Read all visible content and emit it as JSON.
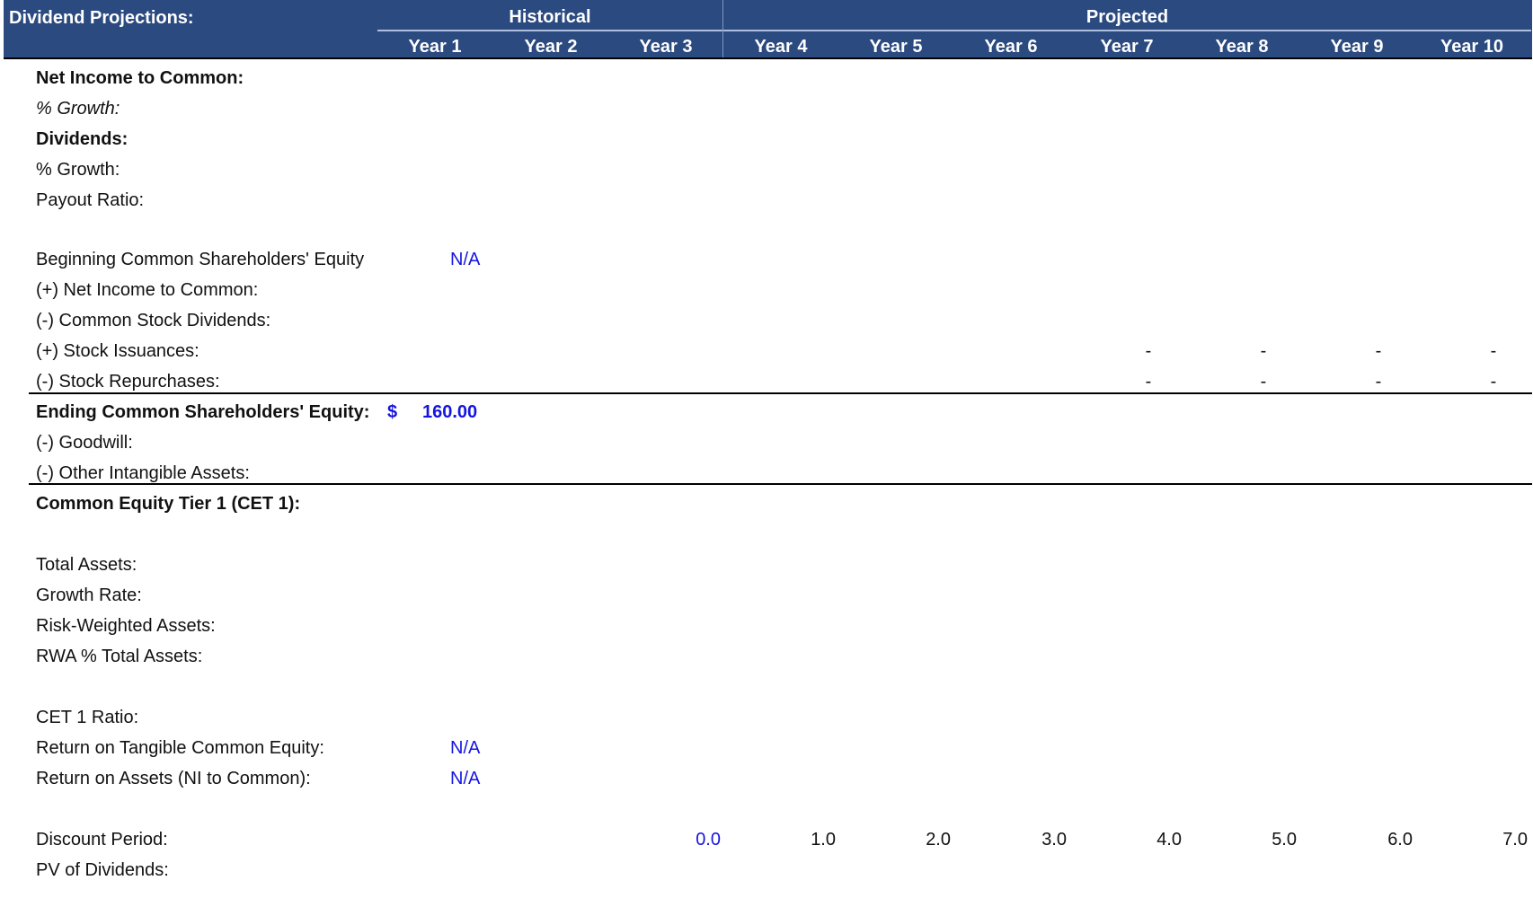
{
  "header": {
    "title": "Dividend Projections:",
    "group_historical": "Historical",
    "group_projected": "Projected",
    "years": [
      "Year 1",
      "Year 2",
      "Year 3",
      "Year 4",
      "Year 5",
      "Year 6",
      "Year 7",
      "Year 8",
      "Year 9",
      "Year 10"
    ]
  },
  "rows": {
    "net_income": "Net Income to Common:",
    "ni_growth": "% Growth:",
    "dividends": "Dividends:",
    "div_growth": "% Growth:",
    "payout": "Payout Ratio:",
    "beg_equity": "Beginning Common Shareholders' Equity",
    "beg_equity_y1": "N/A",
    "plus_ni": "(+) Net Income to Common:",
    "minus_div": "(-) Common Stock Dividends:",
    "plus_issuances": "(+) Stock Issuances:",
    "minus_repurchases": "(-) Stock Repurchases:",
    "dash": "-",
    "end_equity": "Ending Common Shareholders' Equity:",
    "end_equity_currency": "$",
    "end_equity_y1": "160.00",
    "goodwill": "(-) Goodwill:",
    "intangibles": "(-) Other Intangible Assets:",
    "cet1": "Common Equity Tier 1 (CET 1):",
    "total_assets": "Total Assets:",
    "growth_rate": "Growth Rate:",
    "rwa": "Risk-Weighted Assets:",
    "rwa_pct": "RWA % Total Assets:",
    "cet1_ratio": "CET 1 Ratio:",
    "rotce": "Return on Tangible Common Equity:",
    "rotce_y1": "N/A",
    "roa": "Return on Assets (NI to Common):",
    "roa_y1": "N/A",
    "discount_period": "Discount Period:",
    "discount_values": [
      "0.0",
      "1.0",
      "2.0",
      "3.0",
      "4.0",
      "5.0",
      "6.0",
      "7.0"
    ],
    "pv_dividends": "PV of Dividends:"
  },
  "colors": {
    "header_bg": "#2b4a80",
    "input_blue": "#1515e0"
  }
}
